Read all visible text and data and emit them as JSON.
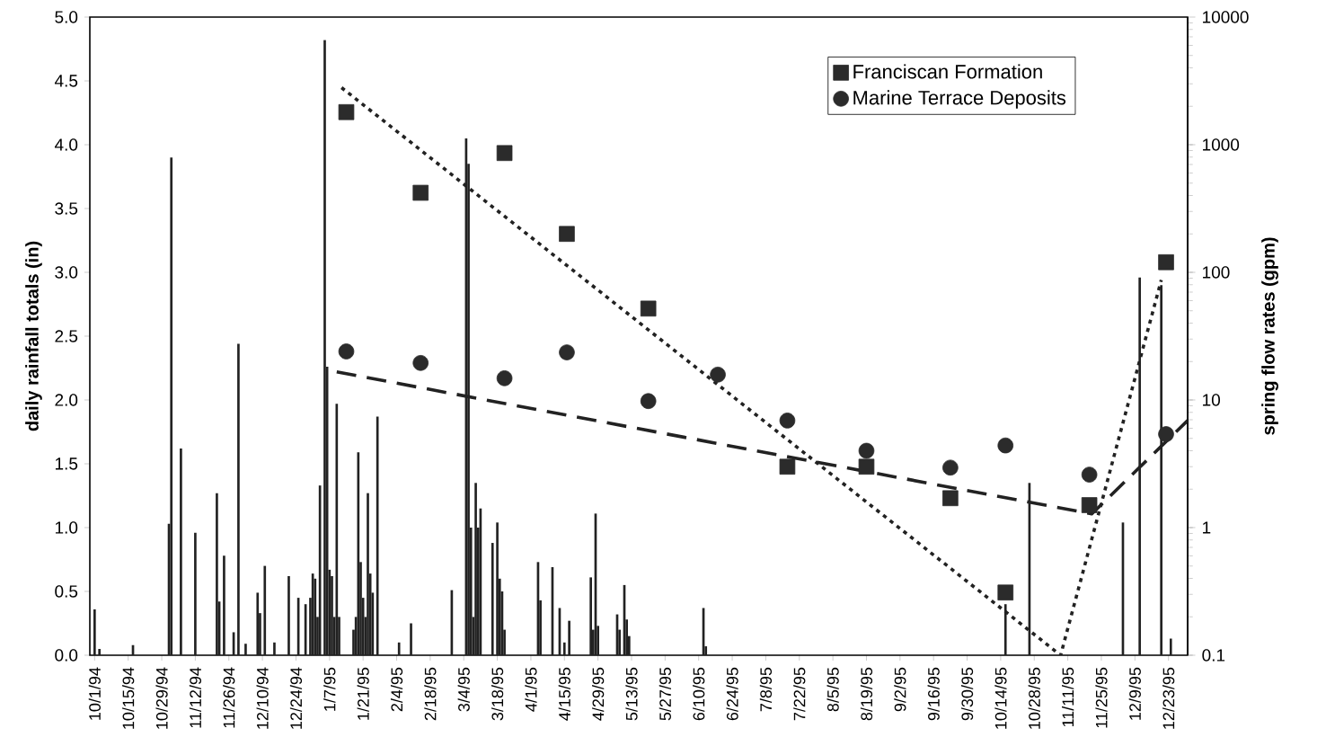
{
  "chart_data": {
    "type": "bar",
    "ylabel": "daily rainfall totals (in)",
    "y2label": "spring flow rates (gpm)",
    "xlim": [
      "1994-09-29",
      "1995-12-31"
    ],
    "xticks": [
      {
        "value": "1994-10-01",
        "label": "10/1/94"
      },
      {
        "value": "1994-10-15",
        "label": "10/15/94"
      },
      {
        "value": "1994-10-29",
        "label": "10/29/94"
      },
      {
        "value": "1994-11-12",
        "label": "11/12/94"
      },
      {
        "value": "1994-11-26",
        "label": "11/26/94"
      },
      {
        "value": "1994-12-10",
        "label": "12/10/94"
      },
      {
        "value": "1994-12-24",
        "label": "12/24/94"
      },
      {
        "value": "1995-01-07",
        "label": "1/7/95"
      },
      {
        "value": "1995-01-21",
        "label": "1/21/95"
      },
      {
        "value": "1995-02-04",
        "label": "2/4/95"
      },
      {
        "value": "1995-02-18",
        "label": "2/18/95"
      },
      {
        "value": "1995-03-04",
        "label": "3/4/95"
      },
      {
        "value": "1995-03-18",
        "label": "3/18/95"
      },
      {
        "value": "1995-04-01",
        "label": "4/1/95"
      },
      {
        "value": "1995-04-15",
        "label": "4/15/95"
      },
      {
        "value": "1995-04-29",
        "label": "4/29/95"
      },
      {
        "value": "1995-05-13",
        "label": "5/13/95"
      },
      {
        "value": "1995-05-27",
        "label": "5/27/95"
      },
      {
        "value": "1995-06-10",
        "label": "6/10/95"
      },
      {
        "value": "1995-06-24",
        "label": "6/24/95"
      },
      {
        "value": "1995-07-08",
        "label": "7/8/95"
      },
      {
        "value": "1995-07-22",
        "label": "7/22/95"
      },
      {
        "value": "1995-08-05",
        "label": "8/5/95"
      },
      {
        "value": "1995-08-19",
        "label": "8/19/95"
      },
      {
        "value": "1995-09-02",
        "label": "9/2/95"
      },
      {
        "value": "1995-09-16",
        "label": "9/16/95"
      },
      {
        "value": "1995-09-30",
        "label": "9/30/95"
      },
      {
        "value": "1995-10-14",
        "label": "10/14/95"
      },
      {
        "value": "1995-10-28",
        "label": "10/28/95"
      },
      {
        "value": "1995-11-11",
        "label": "11/11/95"
      },
      {
        "value": "1995-11-25",
        "label": "11/25/95"
      },
      {
        "value": "1995-12-09",
        "label": "12/9/95"
      },
      {
        "value": "1995-12-23",
        "label": "12/23/95"
      }
    ],
    "ylim": [
      0,
      5
    ],
    "yticks": [
      {
        "value": 0,
        "label": "0.0"
      },
      {
        "value": 0.5,
        "label": "0.5"
      },
      {
        "value": 1,
        "label": "1.0"
      },
      {
        "value": 1.5,
        "label": "1.5"
      },
      {
        "value": 2,
        "label": "2.0"
      },
      {
        "value": 2.5,
        "label": "2.5"
      },
      {
        "value": 3,
        "label": "3.0"
      },
      {
        "value": 3.5,
        "label": "3.5"
      },
      {
        "value": 4,
        "label": "4.0"
      },
      {
        "value": 4.5,
        "label": "4.5"
      },
      {
        "value": 5,
        "label": "5.0"
      }
    ],
    "y2lim": [
      0.1,
      10000
    ],
    "y2ticks": [
      0.1,
      1,
      10,
      100,
      1000,
      10000
    ],
    "log": "y2",
    "legend": "top right",
    "series": [
      {
        "color": "#222222",
        "x": [
          "1994-10-01",
          "1994-10-03",
          "1994-10-17",
          "1994-11-01",
          "1994-11-02",
          "1994-11-06",
          "1994-11-12",
          "1994-11-21",
          "1994-11-22",
          "1994-11-24",
          "1994-11-28",
          "1994-11-30",
          "1994-12-03",
          "1994-12-08",
          "1994-12-09",
          "1994-12-11",
          "1994-12-15",
          "1994-12-21",
          "1994-12-25",
          "1994-12-28",
          "1994-12-30",
          "1994-12-31",
          "1995-01-01",
          "1995-01-02",
          "1995-01-03",
          "1995-01-05",
          "1995-01-06",
          "1995-01-07",
          "1995-01-08",
          "1995-01-09",
          "1995-01-10",
          "1995-01-11",
          "1995-01-17",
          "1995-01-18",
          "1995-01-19",
          "1995-01-20",
          "1995-01-21",
          "1995-01-22",
          "1995-01-23",
          "1995-01-24",
          "1995-01-25",
          "1995-01-27",
          "1995-02-05",
          "1995-02-10",
          "1995-02-27",
          "1995-03-05",
          "1995-03-06",
          "1995-03-07",
          "1995-03-08",
          "1995-03-09",
          "1995-03-10",
          "1995-03-11",
          "1995-03-16",
          "1995-03-18",
          "1995-03-19",
          "1995-03-20",
          "1995-03-21",
          "1995-04-04",
          "1995-04-05",
          "1995-04-10",
          "1995-04-13",
          "1995-04-15",
          "1995-04-17",
          "1995-04-26",
          "1995-04-27",
          "1995-04-28",
          "1995-04-29",
          "1995-05-07",
          "1995-05-08",
          "1995-05-10",
          "1995-05-11",
          "1995-05-12",
          "1995-06-12",
          "1995-06-13",
          "1995-10-16",
          "1995-10-26",
          "1995-12-04",
          "1995-12-11",
          "1995-12-20",
          "1995-12-24"
        ],
        "values": [
          0.36,
          0.05,
          0.08,
          1.03,
          3.9,
          1.62,
          0.96,
          1.27,
          0.42,
          0.78,
          0.18,
          2.44,
          0.09,
          0.49,
          0.33,
          0.7,
          0.1,
          0.62,
          0.45,
          0.4,
          0.45,
          0.64,
          0.6,
          0.3,
          1.33,
          4.82,
          2.26,
          0.67,
          0.62,
          0.3,
          1.97,
          0.3,
          0.2,
          0.3,
          1.59,
          0.73,
          0.45,
          0.3,
          1.27,
          0.64,
          0.49,
          1.87,
          0.1,
          0.25,
          0.51,
          4.05,
          3.85,
          1.0,
          0.3,
          1.35,
          1.0,
          1.15,
          0.88,
          1.04,
          0.6,
          0.5,
          0.2,
          0.73,
          0.43,
          0.69,
          0.37,
          0.1,
          0.27,
          0.61,
          0.2,
          1.11,
          0.23,
          0.32,
          0.2,
          0.55,
          0.28,
          0.15,
          0.37,
          0.07,
          0.4,
          1.35,
          1.04,
          2.96,
          2.9,
          0.13
        ]
      },
      {
        "type": "scatter",
        "name": "Franciscan Formation",
        "axis": "y2",
        "marker": "square",
        "color": "#2b2b2b",
        "x": [
          "1995-01-14",
          "1995-02-14",
          "1995-03-21",
          "1995-04-16",
          "1995-05-20",
          "1995-07-17",
          "1995-08-19",
          "1995-09-23",
          "1995-10-16",
          "1995-11-20",
          "1995-12-22"
        ],
        "values": [
          1800,
          420,
          860,
          200,
          52,
          3.0,
          3.0,
          1.7,
          0.31,
          1.5,
          120
        ]
      },
      {
        "type": "scatter",
        "name": "Marine Terrace Deposits",
        "axis": "y2",
        "marker": "circle",
        "color": "#2b2b2b",
        "x": [
          "1995-01-14",
          "1995-02-14",
          "1995-03-21",
          "1995-04-16",
          "1995-05-20",
          "1995-06-18",
          "1995-07-17",
          "1995-08-19",
          "1995-09-23",
          "1995-10-16",
          "1995-11-20",
          "1995-12-22"
        ],
        "values": [
          24,
          19.5,
          14.8,
          23.6,
          9.8,
          15.8,
          6.9,
          4.0,
          2.95,
          4.4,
          2.6,
          5.4
        ]
      },
      {
        "type": "line",
        "axis": "y2",
        "line_style": "dotted",
        "color": "#222222",
        "x": [
          "1995-01-12",
          "1995-11-08",
          "1995-12-20"
        ],
        "values": [
          2800,
          0.1,
          87
        ]
      },
      {
        "type": "line",
        "axis": "y2",
        "line_style": "dashed",
        "color": "#222222",
        "x": [
          "1995-01-10",
          "1995-11-21",
          "1995-12-31"
        ],
        "values": [
          16.6,
          1.28,
          6.9
        ]
      }
    ]
  }
}
